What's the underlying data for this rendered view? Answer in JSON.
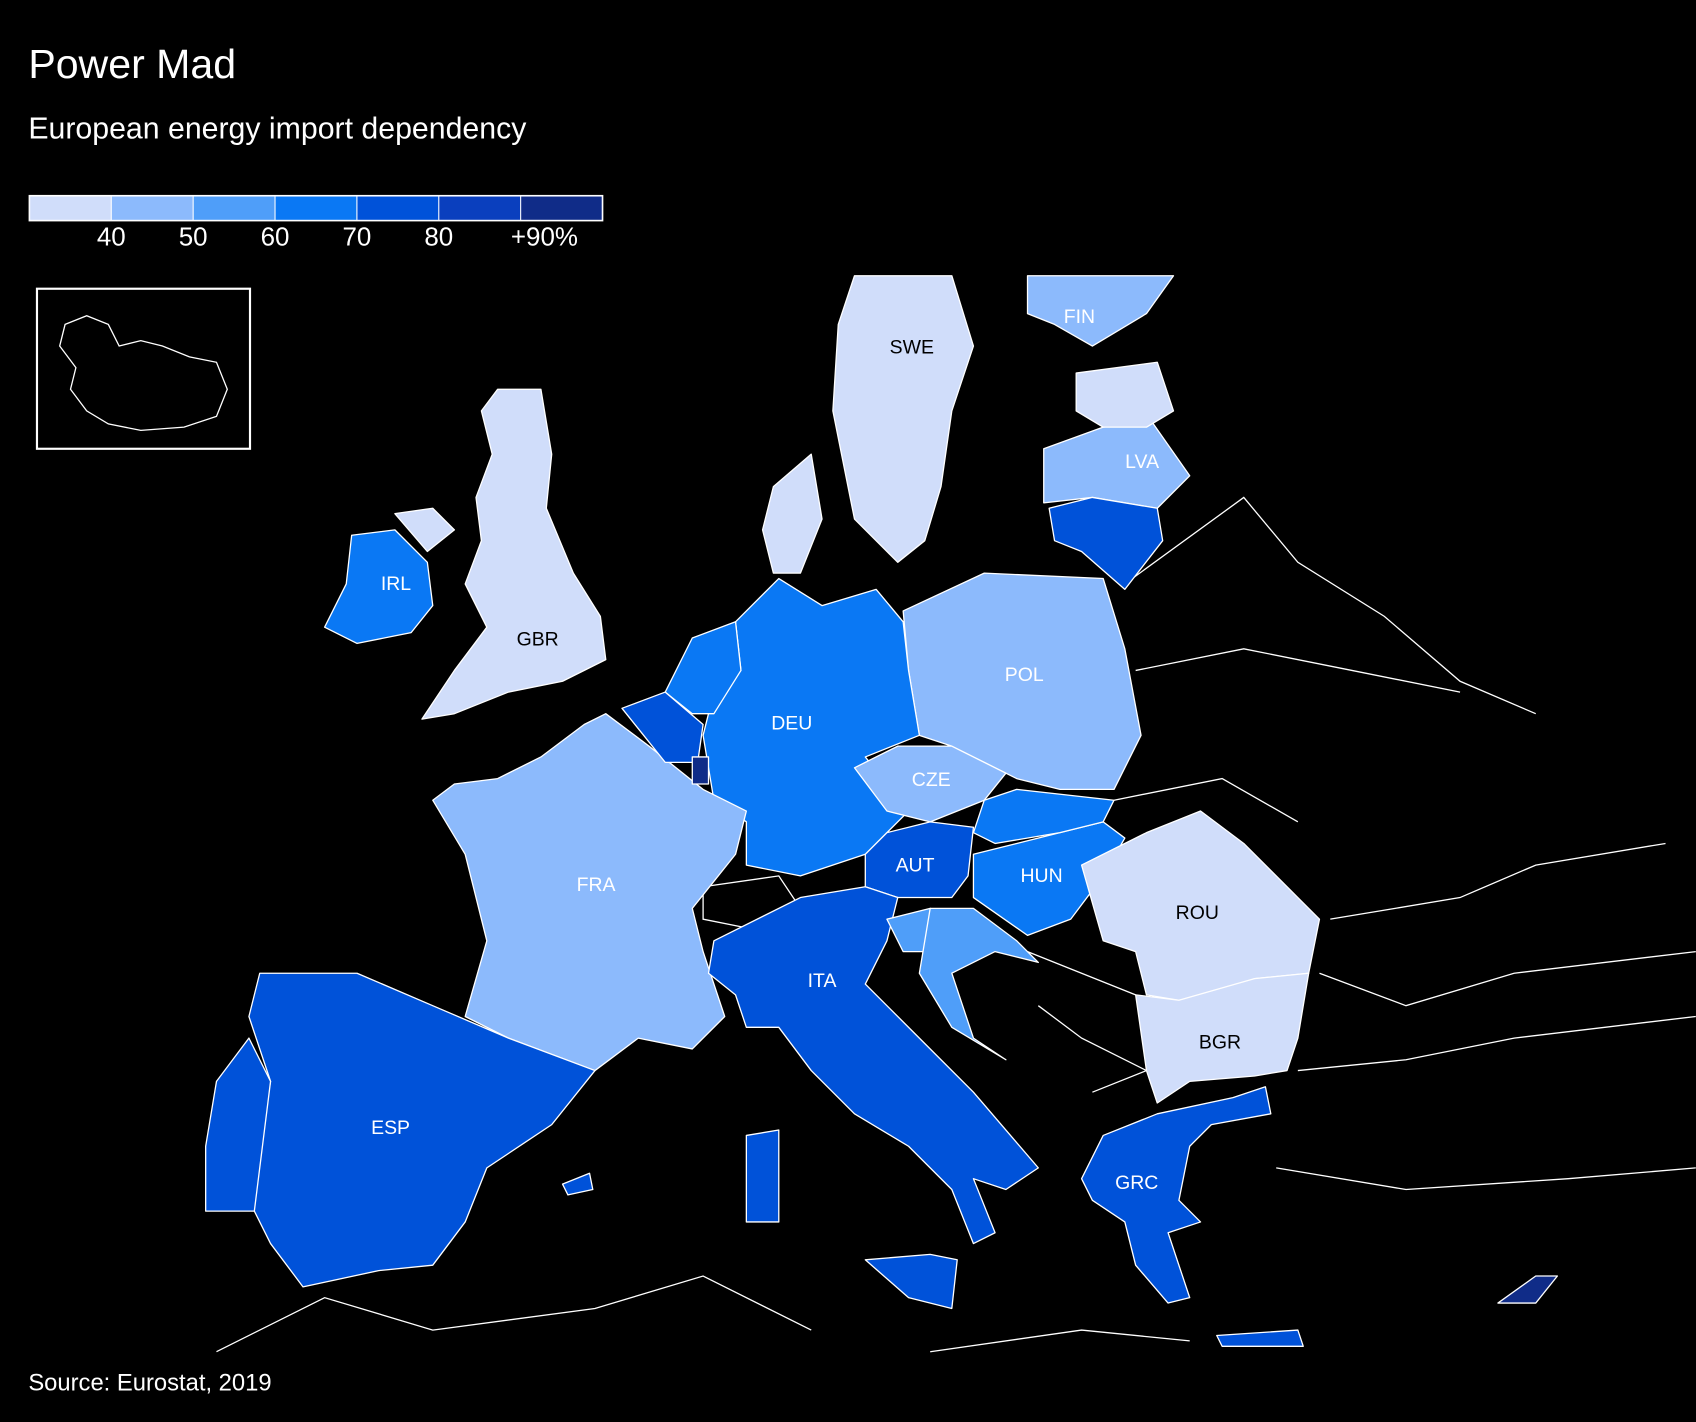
{
  "chart_data": {
    "type": "choropleth",
    "title": "Power Mad",
    "subtitle": "European energy import dependency",
    "source": "Source: Eurostat, 2019",
    "colors": [
      "#d0ddfa",
      "#8cbafc",
      "#4f9ef9",
      "#0a78f4",
      "#0052d9",
      "#0a3fbe",
      "#102c88"
    ],
    "ticks": [
      40,
      50,
      60,
      70,
      80,
      {
        "value": 90,
        "label": "+90%"
      }
    ],
    "countries": [
      {
        "name": "SWE",
        "value": 32
      },
      {
        "name": "FIN",
        "value": 43
      },
      {
        "name": "LVA",
        "value": 44
      },
      {
        "name": "GBR",
        "value": 35
      },
      {
        "name": "IRL",
        "value": 68
      },
      {
        "name": "POL",
        "value": 46
      },
      {
        "name": "DEU",
        "value": 67
      },
      {
        "name": "CZE",
        "value": 41
      },
      {
        "name": "FRA",
        "value": 47
      },
      {
        "name": "AUT",
        "value": 72
      },
      {
        "name": "HUN",
        "value": 66
      },
      {
        "name": "ROU",
        "value": 29
      },
      {
        "name": "ITA",
        "value": 77
      },
      {
        "name": "BGR",
        "value": 38
      },
      {
        "name": "ESP",
        "value": 75
      },
      {
        "name": "GRC",
        "value": 74
      },
      {
        "name": null,
        "value": 5
      },
      {
        "name": null,
        "value": 75
      },
      {
        "name": null,
        "value": 64
      },
      {
        "name": null,
        "value": 78
      },
      {
        "name": null,
        "value": 95
      },
      {
        "name": null,
        "value": 64
      },
      {
        "name": null,
        "value": 52
      },
      {
        "name": null,
        "value": 53
      },
      {
        "name": null,
        "value": 74
      },
      {
        "name": null,
        "value": 38
      },
      {
        "name": null,
        "value": 93
      }
    ]
  }
}
